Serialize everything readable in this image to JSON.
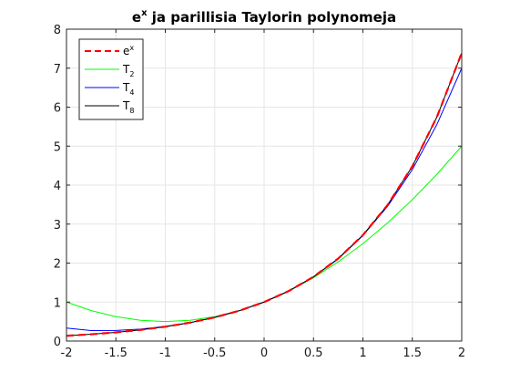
{
  "chart_data": {
    "type": "line",
    "title": "ja parillisia Taylorin polynomeja",
    "title_math": {
      "base": "e",
      "sup": "x"
    },
    "xlabel": "",
    "ylabel": "",
    "xlim": [
      -2,
      2
    ],
    "ylim": [
      0,
      8
    ],
    "x_ticks": [
      -2,
      -1.5,
      -1,
      -0.5,
      0,
      0.5,
      1,
      1.5,
      2
    ],
    "x_tick_labels": [
      "-2",
      "-1.5",
      "-1",
      "-0.5",
      "0",
      "0.5",
      "1",
      "1.5",
      "2"
    ],
    "y_ticks": [
      0,
      1,
      2,
      3,
      4,
      5,
      6,
      7,
      8
    ],
    "y_tick_labels": [
      "0",
      "1",
      "2",
      "3",
      "4",
      "5",
      "6",
      "7",
      "8"
    ],
    "grid": true,
    "legend_position": "top-left",
    "x": [
      -2,
      -1.75,
      -1.5,
      -1.25,
      -1,
      -0.75,
      -0.5,
      -0.25,
      0,
      0.25,
      0.5,
      0.75,
      1,
      1.25,
      1.5,
      1.75,
      2
    ],
    "series": [
      {
        "name": "e^x",
        "legend": {
          "base": "e",
          "sup": "x"
        },
        "color": "#ff0000",
        "dashed": true,
        "values": [
          0.135,
          0.174,
          0.223,
          0.287,
          0.368,
          0.472,
          0.607,
          0.779,
          1.0,
          1.284,
          1.649,
          2.117,
          2.718,
          3.49,
          4.482,
          5.755,
          7.389
        ]
      },
      {
        "name": "T_2",
        "legend": {
          "base": "T",
          "sub": "2"
        },
        "color": "#00ff00",
        "dashed": false,
        "values": [
          1.0,
          0.781,
          0.625,
          0.531,
          0.5,
          0.531,
          0.625,
          0.781,
          1.0,
          1.281,
          1.625,
          2.031,
          2.5,
          3.031,
          3.625,
          4.281,
          5.0
        ]
      },
      {
        "name": "T_4",
        "legend": {
          "base": "T",
          "sub": "4"
        },
        "color": "#0000ff",
        "dashed": false,
        "values": [
          0.333,
          0.269,
          0.273,
          0.308,
          0.375,
          0.47,
          0.604,
          0.779,
          1.0,
          1.284,
          1.646,
          2.107,
          2.708,
          3.458,
          4.398,
          5.562,
          7.0
        ]
      },
      {
        "name": "T_8",
        "legend": {
          "base": "T",
          "sub": "8"
        },
        "color": "#000000",
        "dashed": false,
        "values": [
          0.135,
          0.174,
          0.223,
          0.287,
          0.368,
          0.472,
          0.607,
          0.779,
          1.0,
          1.284,
          1.649,
          2.117,
          2.718,
          3.49,
          4.482,
          5.755,
          7.387
        ]
      }
    ]
  }
}
